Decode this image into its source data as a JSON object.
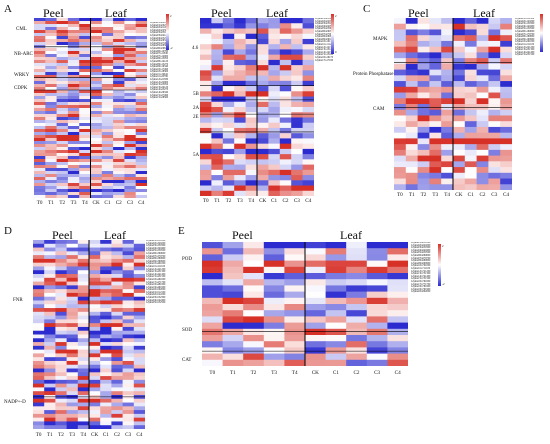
{
  "colors": {
    "high": "#d73027",
    "mid": "#ffffff",
    "low": "#2b2bd0"
  },
  "conditions": [
    "T0",
    "T1",
    "T2",
    "T3",
    "T4",
    "CK",
    "C1",
    "C2",
    "C3",
    "C4"
  ],
  "groups": [
    "Peel",
    "Leaf"
  ],
  "chart_data": [
    {
      "type": "heatmap",
      "panel": "A",
      "categories": [
        "CML",
        "NB-ARC",
        "WRKY",
        "CDPK"
      ],
      "x": [
        "T0",
        "T1",
        "T2",
        "T3",
        "T4",
        "CK",
        "C1",
        "C2",
        "C3",
        "C4"
      ],
      "n_rows": 60,
      "colorbar": {
        "max": "2",
        "min": "-2"
      }
    },
    {
      "type": "heatmap",
      "panel": "B",
      "categories": [
        "4.6",
        "5B",
        "2A",
        "2E",
        "5A"
      ],
      "x": [
        "T0",
        "T1",
        "T2",
        "T3",
        "T4",
        "CK",
        "C1",
        "C2",
        "C3",
        "C4"
      ],
      "n_rows": 34,
      "colorbar": {
        "max": "2",
        "min": "0"
      }
    },
    {
      "type": "heatmap",
      "panel": "C",
      "categories": [
        "MAPK",
        "Protein Phosphatase",
        "CAM"
      ],
      "x": [
        "T0",
        "T1",
        "T2",
        "T3",
        "T4",
        "CK",
        "C1",
        "C2",
        "C3",
        "C4"
      ],
      "n_rows": 30,
      "colorbar": {
        "max": "",
        "min": ""
      }
    },
    {
      "type": "heatmap",
      "panel": "D",
      "categories": [
        "FNR",
        "NADP+-D"
      ],
      "x": [
        "T0",
        "T1",
        "T2",
        "T3",
        "T4",
        "CK",
        "C1",
        "C2",
        "C3",
        "C4"
      ],
      "n_rows": 50,
      "colorbar": {
        "max": "",
        "min": ""
      }
    },
    {
      "type": "heatmap",
      "panel": "E",
      "categories": [
        "POD",
        "SOD",
        "CAT"
      ],
      "x": [
        "T0",
        "T1",
        "T2",
        "T3",
        "T4",
        "CK",
        "C1",
        "C2",
        "C3",
        "C4"
      ],
      "n_rows": 20,
      "colorbar": {
        "max": "2",
        "min": "-2"
      }
    }
  ],
  "panels": {
    "A": {
      "letter": "A",
      "genes": "Glyma01G000100 Glyma01G002300 Glyma02G014500 Glyma02G025800 Glyma03G030100 Glyma03G041200 Glyma04G052700 Glyma04G063400 Glyma05G074900 Glyma05G085600 Glyma06G096100 Glyma06G107800 Glyma07G118300 Glyma07G129000 Glyma08G130500 Glyma08G141200 Glyma09G152700 Glyma09G163400 Glyma10G174900 Glyma10G185600 Glyma11G196100 Glyma11G207800 Glyma12G218300 Glyma12G229000 Glyma13G230500 Glyma13G241200 Glyma14G252700 Glyma14G263400 Glyma15G274900 Glyma15G285600"
    },
    "B": {
      "letter": "B",
      "genes": "Glyma01G010200 Glyma02G020300 Glyma03G030400 Glyma04G040500 Glyma05G050600 Glyma06G060700 Glyma07G070800 Glyma08G080900 Glyma09G091000 Glyma10G101100 Glyma11G111200 Glyma12G121300 Glyma13G131400 Glyma14G141500 Glyma15G151600 Glyma16G161700 Glyma17G171800"
    },
    "C": {
      "letter": "C",
      "genes": "Glyma01G110100 Glyma02G120200 Glyma03G130300 Glyma04G140400 Glyma05G150500 Glyma06G160600 Glyma07G170700 Glyma08G180800 Glyma09G190900 Glyma10G201000 Glyma11G211100 Glyma12G221200 Glyma13G231300 Glyma14G241400 Glyma15G251500"
    },
    "D": {
      "letter": "D",
      "genes": "Glyma01G310100 Glyma02G320200 Glyma03G330300 Glyma04G340400 Glyma05G350500 Glyma06G360600 Glyma07G370700 Glyma08G380800 Glyma09G390900 Glyma10G401000 Glyma11G411100 Glyma12G421200 Glyma13G431300 Glyma14G441400 Glyma15G451500 Glyma16G461600 Glyma17G471700 Glyma18G481800 Glyma19G491900 Glyma20G502000 Glyma01G512100 Glyma02G522200 Glyma03G532300 Glyma04G542400 Glyma05G552500"
    },
    "E": {
      "letter": "E",
      "genes": "Glyma01G610100 Glyma02G620200 Glyma03G630300 Glyma04G640400 Glyma05G650500 Glyma06G660600 Glyma07G670700 Glyma08G680800 Glyma09G690900 Glyma10G701000 Glyma11G711100 Glyma12G721200 Glyma13G731300 Glyma14G741400 Glyma15G751500 Glyma16G761600 Glyma17G771700 Glyma18G781800 Glyma19G791900 Glyma20G802000"
    }
  }
}
